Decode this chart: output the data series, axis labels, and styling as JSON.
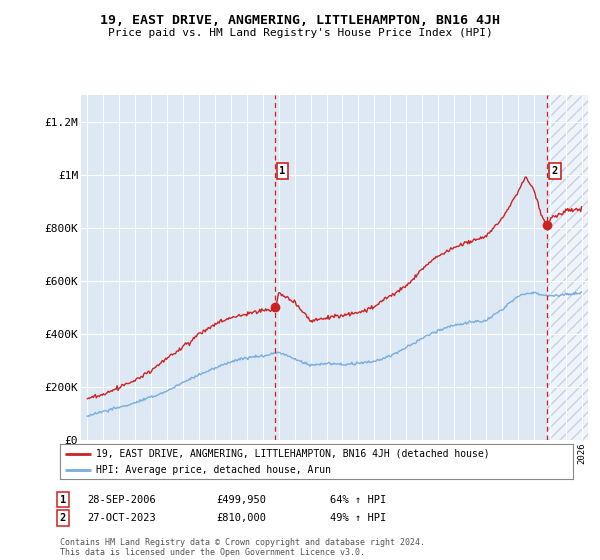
{
  "title": "19, EAST DRIVE, ANGMERING, LITTLEHAMPTON, BN16 4JH",
  "subtitle": "Price paid vs. HM Land Registry's House Price Index (HPI)",
  "ylim": [
    0,
    1300000
  ],
  "yticks": [
    0,
    200000,
    400000,
    600000,
    800000,
    1000000,
    1200000
  ],
  "ytick_labels": [
    "£0",
    "£200K",
    "£400K",
    "£600K",
    "£800K",
    "£1M",
    "£1.2M"
  ],
  "hpi_color": "#7aacdc",
  "price_color": "#cc2222",
  "vline_color": "#cc2222",
  "legend_label_price": "19, EAST DRIVE, ANGMERING, LITTLEHAMPTON, BN16 4JH (detached house)",
  "legend_label_hpi": "HPI: Average price, detached house, Arun",
  "sale1_label": "1",
  "sale1_date": "28-SEP-2006",
  "sale1_price": "£499,950",
  "sale1_hpi": "64% ↑ HPI",
  "sale1_year": 2006.75,
  "sale1_price_val": 499950,
  "sale2_label": "2",
  "sale2_date": "27-OCT-2023",
  "sale2_price": "£810,000",
  "sale2_hpi": "49% ↑ HPI",
  "sale2_year": 2023.83,
  "sale2_price_val": 810000,
  "footnote": "Contains HM Land Registry data © Crown copyright and database right 2024.\nThis data is licensed under the Open Government Licence v3.0.",
  "background_color": "#ffffff",
  "chart_bg_color": "#dce9f5",
  "grid_color": "#ffffff",
  "xlim_left": 1994.6,
  "xlim_right": 2026.4
}
